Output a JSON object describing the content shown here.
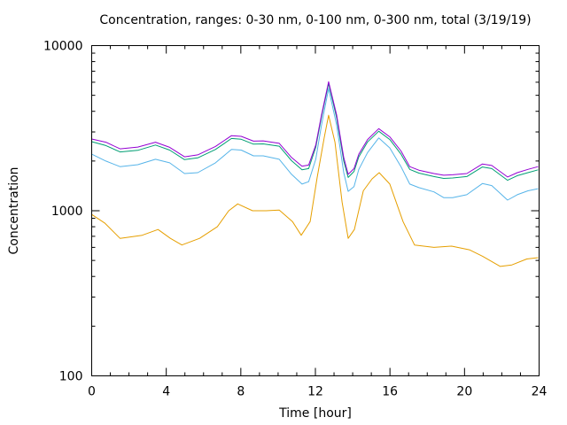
{
  "chart_data": {
    "type": "line",
    "title": "Concentration, ranges: 0-30 nm, 0-100 nm, 0-300 nm, total (3/19/19)",
    "xlabel": "Time [hour]",
    "ylabel": "Concentration",
    "xlim": [
      0,
      24
    ],
    "ylim": [
      100,
      10000
    ],
    "yscale": "log",
    "grid": false,
    "legend": "none",
    "xticks": [
      0,
      4,
      8,
      12,
      16,
      20,
      24
    ],
    "xtick_labels": [
      "0",
      "4",
      "8",
      "12",
      "16",
      "20",
      "24"
    ],
    "yticks": [
      100,
      1000,
      10000
    ],
    "ytick_labels": [
      "100",
      "1000",
      "10000"
    ],
    "series": [
      {
        "name": "total",
        "color": "#9400d3",
        "x": [
          0,
          0.76,
          1.52,
          2.47,
          3.42,
          4.18,
          4.98,
          5.69,
          6.64,
          7.5,
          8.02,
          8.68,
          9.2,
          10.06,
          10.72,
          11.28,
          11.64,
          12.02,
          12.33,
          12.71,
          13.14,
          13.52,
          13.76,
          14.07,
          14.33,
          14.8,
          15.4,
          15.99,
          16.59,
          17.06,
          17.55,
          18.36,
          18.88,
          19.36,
          20.12,
          20.96,
          21.46,
          22.31,
          22.83,
          23.4,
          23.95
        ],
        "y": [
          2720,
          2600,
          2370,
          2430,
          2600,
          2420,
          2120,
          2180,
          2450,
          2850,
          2820,
          2640,
          2650,
          2560,
          2100,
          1860,
          1890,
          2500,
          3800,
          6040,
          3800,
          2100,
          1660,
          1800,
          2200,
          2700,
          3140,
          2800,
          2300,
          1850,
          1760,
          1680,
          1640,
          1650,
          1680,
          1920,
          1880,
          1600,
          1700,
          1780,
          1850
        ]
      },
      {
        "name": "0-300 nm",
        "color": "#009e73",
        "x": [
          0,
          0.76,
          1.52,
          2.47,
          3.42,
          4.18,
          4.98,
          5.69,
          6.64,
          7.5,
          8.02,
          8.68,
          9.2,
          10.06,
          10.72,
          11.28,
          11.64,
          12.02,
          12.33,
          12.71,
          13.14,
          13.52,
          13.76,
          14.07,
          14.33,
          14.8,
          15.4,
          15.99,
          16.59,
          17.06,
          17.55,
          18.36,
          18.88,
          19.36,
          20.12,
          20.96,
          21.46,
          22.31,
          22.83,
          23.4,
          23.95
        ],
        "y": [
          2620,
          2480,
          2270,
          2320,
          2500,
          2330,
          2040,
          2090,
          2350,
          2740,
          2710,
          2530,
          2540,
          2460,
          2010,
          1770,
          1800,
          2420,
          3700,
          5900,
          3650,
          2000,
          1590,
          1730,
          2120,
          2610,
          3030,
          2700,
          2200,
          1780,
          1690,
          1610,
          1570,
          1580,
          1610,
          1840,
          1800,
          1530,
          1630,
          1700,
          1770
        ]
      },
      {
        "name": "0-100 nm",
        "color": "#56b4e9",
        "x": [
          0,
          0.76,
          1.52,
          2.47,
          3.42,
          4.18,
          4.98,
          5.69,
          6.64,
          7.5,
          8.02,
          8.68,
          9.2,
          10.06,
          10.72,
          11.28,
          11.64,
          12.02,
          12.33,
          12.71,
          13.14,
          13.52,
          13.76,
          14.07,
          14.33,
          14.8,
          15.4,
          15.99,
          16.59,
          17.06,
          17.55,
          18.36,
          18.88,
          19.36,
          20.12,
          20.96,
          21.46,
          22.31,
          22.83,
          23.4,
          23.95
        ],
        "y": [
          2200,
          2000,
          1850,
          1900,
          2050,
          1950,
          1680,
          1700,
          1950,
          2350,
          2330,
          2150,
          2150,
          2050,
          1660,
          1450,
          1500,
          2050,
          3300,
          5500,
          3300,
          1700,
          1310,
          1400,
          1780,
          2250,
          2760,
          2400,
          1850,
          1450,
          1380,
          1300,
          1200,
          1200,
          1250,
          1460,
          1420,
          1160,
          1250,
          1320,
          1360
        ]
      },
      {
        "name": "0-30 nm",
        "color": "#e69f00",
        "x": [
          0,
          0.71,
          1.52,
          2.71,
          3.56,
          4.22,
          4.84,
          5.79,
          6.74,
          7.35,
          7.83,
          8.63,
          9.35,
          10.06,
          10.77,
          11.24,
          11.72,
          12.09,
          12.47,
          12.71,
          13.05,
          13.43,
          13.76,
          14.09,
          14.57,
          15.04,
          15.42,
          15.99,
          16.7,
          17.32,
          18.36,
          19.31,
          20.26,
          20.97,
          21.92,
          22.54,
          23.34,
          23.95
        ],
        "y": [
          950,
          840,
          680,
          710,
          770,
          680,
          620,
          680,
          800,
          1000,
          1100,
          1000,
          1000,
          1010,
          860,
          710,
          860,
          1580,
          2760,
          3790,
          2600,
          1130,
          680,
          770,
          1320,
          1560,
          1700,
          1450,
          860,
          620,
          600,
          610,
          580,
          530,
          460,
          470,
          510,
          520
        ]
      }
    ]
  }
}
